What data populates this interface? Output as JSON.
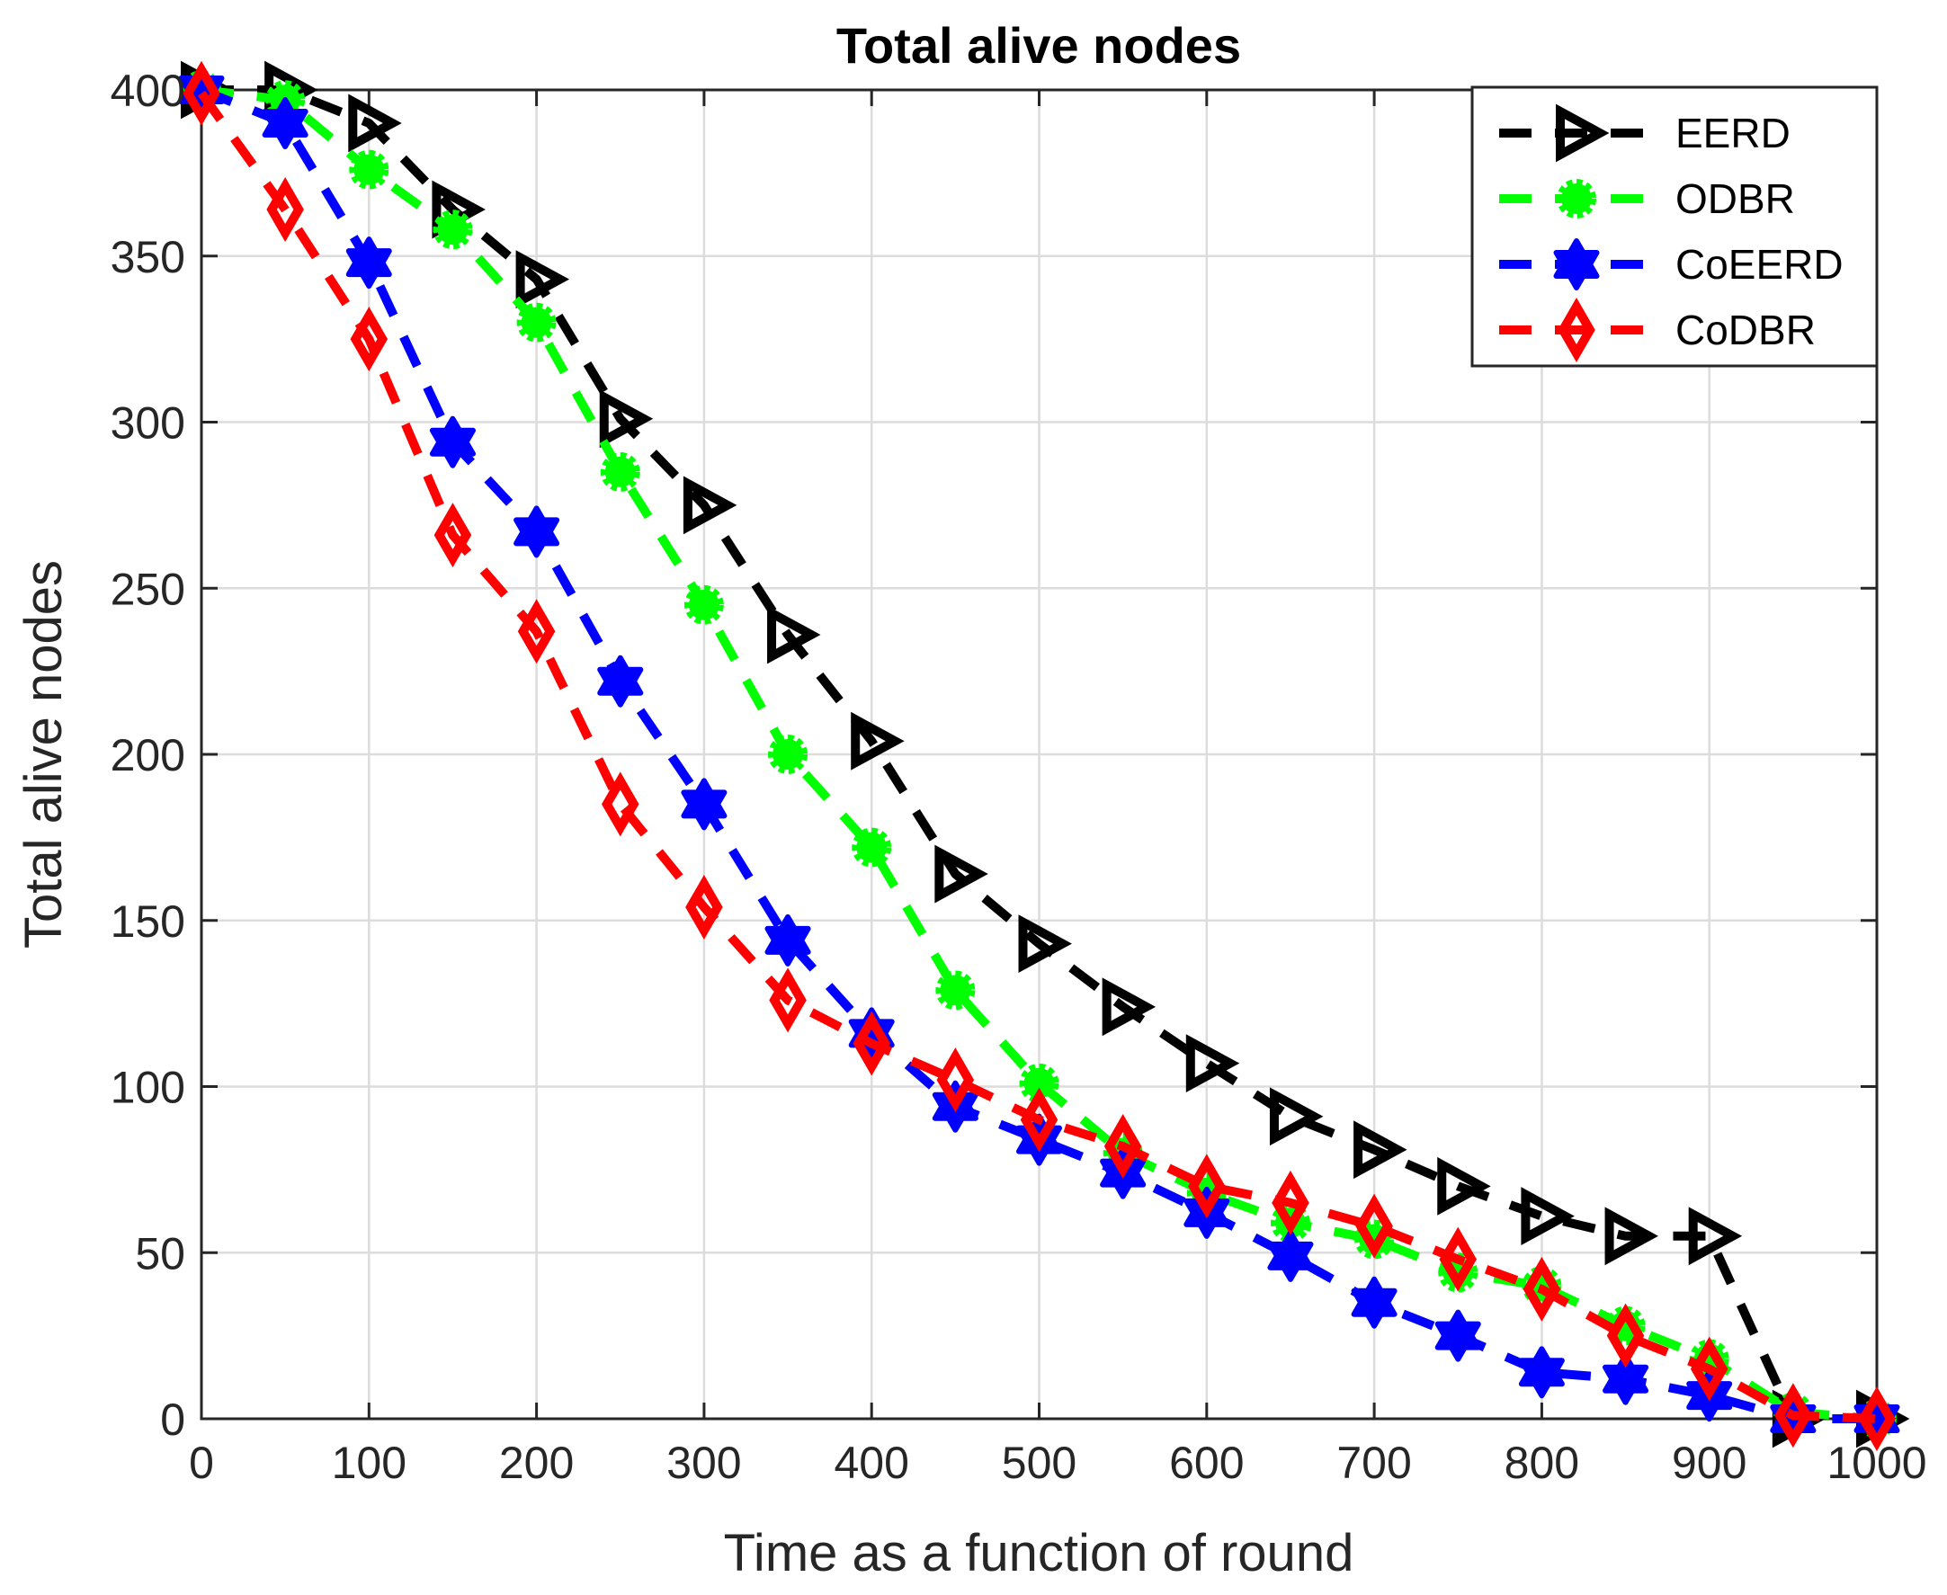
{
  "chart_data": {
    "type": "line",
    "title": "Total alive nodes",
    "xlabel": "Time as a function of round",
    "ylabel": "Total alive nodes",
    "xlim": [
      0,
      1000
    ],
    "ylim": [
      0,
      400
    ],
    "xticks": [
      0,
      100,
      200,
      300,
      400,
      500,
      600,
      700,
      800,
      900,
      1000
    ],
    "yticks": [
      0,
      50,
      100,
      150,
      200,
      250,
      300,
      350,
      400
    ],
    "grid": true,
    "legend_position": "top-right",
    "x": [
      0,
      50,
      100,
      150,
      200,
      250,
      300,
      350,
      400,
      450,
      500,
      550,
      600,
      650,
      700,
      750,
      800,
      850,
      900,
      950,
      1000
    ],
    "series": [
      {
        "name": "EERD",
        "color": "#000000",
        "marker": "triangle-right",
        "values": [
          400,
          400,
          390,
          364,
          343,
          301,
          275,
          236,
          204,
          164,
          143,
          124,
          107,
          91,
          81,
          70,
          61,
          55,
          55,
          0,
          0
        ]
      },
      {
        "name": "ODBR",
        "color": "#00ff00",
        "marker": "circle",
        "values": [
          400,
          397,
          376,
          358,
          330,
          285,
          245,
          200,
          172,
          129,
          101,
          80,
          68,
          59,
          54,
          44,
          40,
          28,
          18,
          2,
          0
        ]
      },
      {
        "name": "CoEERD",
        "color": "#0000ff",
        "marker": "hexagram",
        "values": [
          400,
          390,
          348,
          294,
          267,
          222,
          185,
          144,
          116,
          94,
          84,
          74,
          62,
          49,
          35,
          25,
          14,
          12,
          7,
          0,
          0
        ]
      },
      {
        "name": "CoDBR",
        "color": "#ff0000",
        "marker": "diamond",
        "values": [
          399,
          364,
          325,
          266,
          237,
          185,
          154,
          126,
          113,
          102,
          90,
          82,
          70,
          65,
          58,
          48,
          39,
          25,
          15,
          1,
          0
        ]
      }
    ]
  }
}
